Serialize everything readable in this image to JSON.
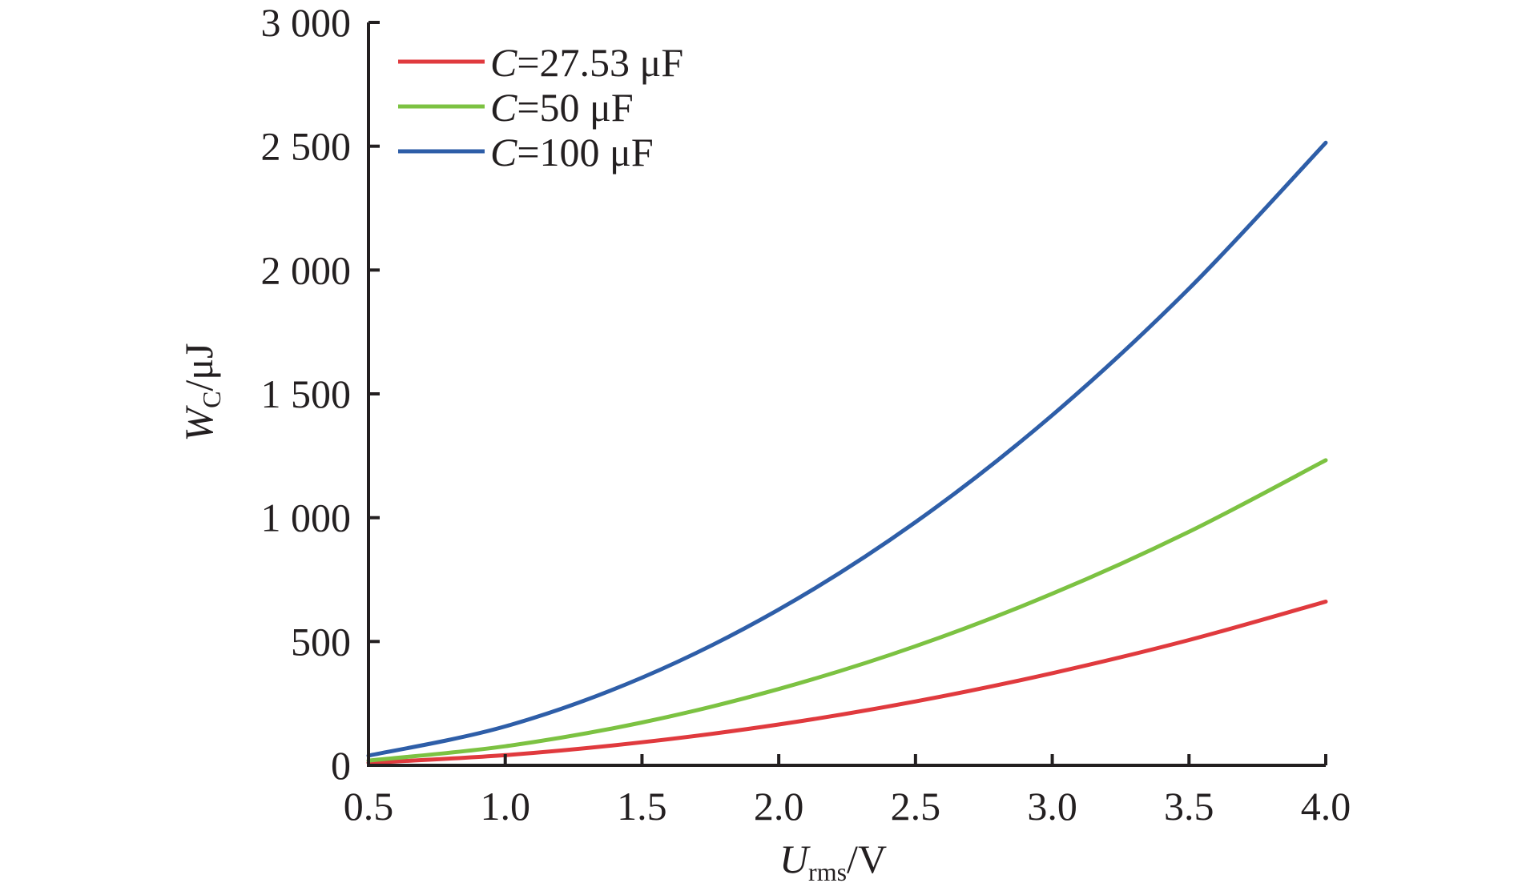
{
  "chart_data": {
    "type": "line",
    "title": "",
    "x_axis": {
      "label_main": "U",
      "label_sub": "rms",
      "label_unit": "/V",
      "range": [
        0.5,
        4.0
      ],
      "ticks": [
        0.5,
        1.0,
        1.5,
        2.0,
        2.5,
        3.0,
        3.5,
        4.0
      ],
      "tick_labels": [
        "0.5",
        "1.0",
        "1.5",
        "2.0",
        "2.5",
        "3.0",
        "3.5",
        "4.0"
      ]
    },
    "y_axis": {
      "label_main": "W",
      "label_sub": "C",
      "label_unit": "/μJ",
      "range": [
        0,
        3000
      ],
      "ticks": [
        0,
        500,
        1000,
        1500,
        2000,
        2500,
        3000
      ],
      "tick_labels": [
        "0",
        "500",
        "1 000",
        "1 500",
        "2 000",
        "2 500",
        "3 000"
      ]
    },
    "grid": false,
    "legend": {
      "placement": "top-left"
    },
    "x": [
      0.5,
      1.0,
      1.5,
      2.0,
      2.5,
      3.0,
      3.5,
      4.0
    ],
    "series": [
      {
        "name_var": "C",
        "name_rest": "=27.53 μF",
        "color": "#e03a3e",
        "values": [
          10,
          41,
          93,
          165,
          258,
          372,
          506,
          661
        ]
      },
      {
        "name_var": "C",
        "name_rest": "=50 μF",
        "color": "#7cc242",
        "values": [
          19,
          77,
          173,
          308,
          481,
          693,
          943,
          1232
        ]
      },
      {
        "name_var": "C",
        "name_rest": "=100 μF",
        "color": "#2e5ea8",
        "values": [
          39,
          157,
          354,
          629,
          982,
          1414,
          1925,
          2514
        ]
      }
    ]
  }
}
